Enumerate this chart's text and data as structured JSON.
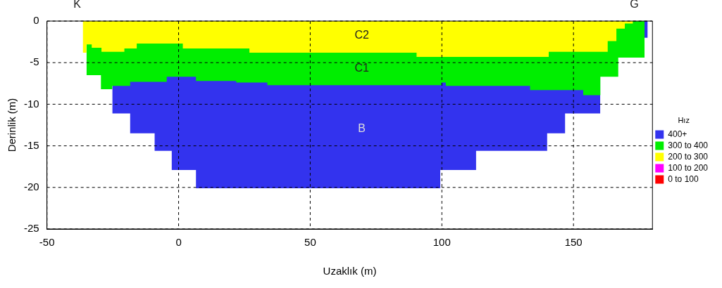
{
  "chart_data": {
    "type": "area",
    "xlabel": "Uzaklık (m)",
    "ylabel": "Derinlik (m)",
    "legend_title": "Hız",
    "xlim": [
      -50,
      180
    ],
    "xticks": [
      -50,
      0,
      50,
      100,
      150
    ],
    "ylim": [
      -25,
      0
    ],
    "yticks": [
      0,
      -5,
      -10,
      -15,
      -20,
      -25
    ],
    "grid": true,
    "legend": "right",
    "series": [
      {
        "name": "400+",
        "color": "#3333ee",
        "x": [
          -25.2,
          -18.4,
          -9.1,
          -2.6,
          6.6,
          99.4,
          113,
          140,
          146.8,
          151.5,
          160.2,
          170,
          176.8,
          178.2
        ],
        "values": [
          -8.9,
          -11.1,
          -13.5,
          -15.6,
          -17.9,
          -20.1,
          -17.9,
          -15.6,
          -13.5,
          -11.1,
          -11.1,
          null,
          -2,
          -2
        ]
      },
      {
        "name": "300 to 400",
        "color": "#00ee00",
        "x": [
          -35,
          -29.5,
          -25.2,
          -18.4,
          -4.5,
          6.6,
          21.9,
          33.7,
          99.8,
          101.5,
          133.5,
          153.7,
          160.2,
          167,
          174,
          177
        ],
        "values": [
          -4.4,
          -6.5,
          -8.2,
          -7.8,
          -7.3,
          -6.7,
          -7.2,
          -7.4,
          -7.7,
          -7.4,
          -7.8,
          -8.3,
          -8.9,
          -6.7,
          -4.4,
          -4.4
        ]
      },
      {
        "name": "200 to 300",
        "color": "#ffff00",
        "x": [
          -36.4,
          -35,
          -33,
          -29.3,
          -20.6,
          -15.9,
          1.6,
          26.9,
          90.4,
          140.6,
          163,
          166.3,
          169.5,
          171,
          172.6
        ],
        "values": [
          -2.1,
          -3.8,
          -2.8,
          -3.2,
          -3.7,
          -3.3,
          -2.7,
          -3.3,
          -3.8,
          -4.3,
          -3.7,
          -2.4,
          -0.9,
          -0.3,
          -0.3
        ]
      },
      {
        "name": "100 to 200",
        "color": "#ff00ff"
      },
      {
        "name": "0 to 100",
        "color": "#ff0000"
      }
    ],
    "annotations": [
      "K",
      "G",
      "C2",
      "C1",
      "B"
    ]
  }
}
